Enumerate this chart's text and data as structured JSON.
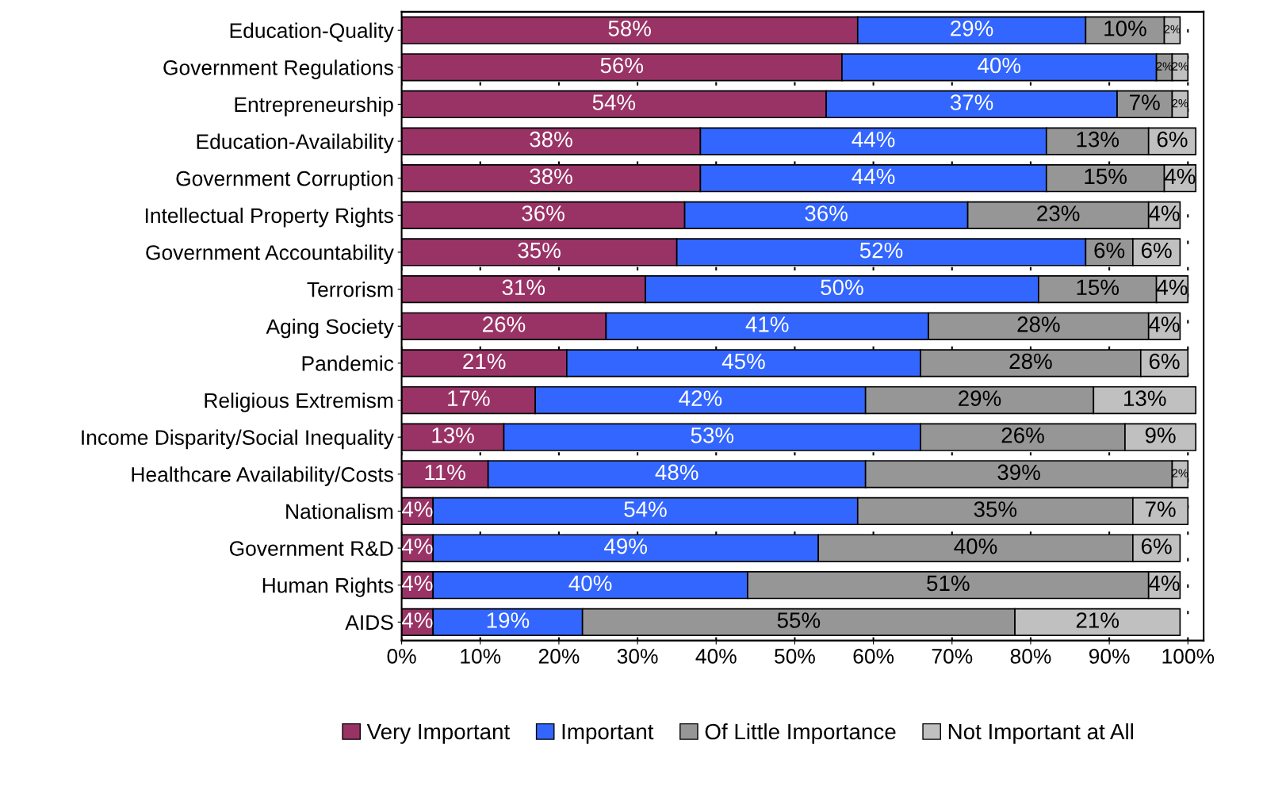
{
  "chart_data": {
    "type": "bar",
    "orientation": "horizontal",
    "stacked": true,
    "legend": "bottom",
    "grid": "x",
    "categories": [
      "Education-Quality",
      "Government Regulations",
      "Entrepreneurship",
      "Education-Availability",
      "Government Corruption",
      "Intellectual Property Rights",
      "Government Accountability",
      "Terrorism",
      "Aging Society",
      "Pandemic",
      "Religious Extremism",
      "Income Disparity/Social Inequality",
      "Healthcare Availability/Costs",
      "Nationalism",
      "Government R&D",
      "Human Rights",
      "AIDS"
    ],
    "series": [
      {
        "name": "Very Important",
        "color": "#993366",
        "values": [
          58,
          56,
          54,
          38,
          38,
          36,
          35,
          31,
          26,
          21,
          17,
          13,
          11,
          4,
          4,
          4,
          4
        ],
        "value_labels": [
          "58%",
          "56%",
          "54%",
          "38%",
          "38%",
          "36%",
          "35%",
          "31%",
          "26%",
          "21%",
          "17%",
          "13%",
          "11%",
          "4%",
          "4%",
          "4%",
          "4%"
        ]
      },
      {
        "name": "Important",
        "color": "#3366ff",
        "values": [
          29,
          40,
          37,
          44,
          44,
          36,
          52,
          50,
          41,
          45,
          42,
          53,
          48,
          54,
          49,
          40,
          19
        ],
        "value_labels": [
          "29%",
          "40%",
          "37%",
          "44%",
          "44%",
          "36%",
          "52%",
          "50%",
          "41%",
          "45%",
          "42%",
          "53%",
          "48%",
          "54%",
          "49%",
          "40%",
          "19%"
        ]
      },
      {
        "name": "Of Little Importance",
        "color": "#969696",
        "values": [
          10,
          2,
          7,
          13,
          15,
          23,
          6,
          15,
          28,
          28,
          29,
          26,
          39,
          35,
          40,
          51,
          55
        ],
        "value_labels": [
          "10%",
          "2%",
          "7%",
          "13%",
          "15%",
          "23%",
          "6%",
          "15%",
          "28%",
          "28%",
          "29%",
          "26%",
          "39%",
          "35%",
          "40%",
          "51%",
          "55%"
        ]
      },
      {
        "name": "Not Important at All",
        "color": "#c0c0c0",
        "values": [
          2,
          2,
          2,
          6,
          4,
          4,
          6,
          4,
          4,
          6,
          13,
          9,
          2,
          7,
          6,
          4,
          21
        ],
        "value_labels": [
          "2%",
          "2%",
          "2%",
          "6%",
          "4%",
          "4%",
          "6%",
          "4%",
          "4%",
          "6%",
          "13%",
          "9%",
          "2%",
          "7%",
          "6%",
          "4%",
          "21%"
        ]
      }
    ],
    "xlim": [
      0,
      102
    ],
    "xticks": [
      {
        "value": 0,
        "label": "0%"
      },
      {
        "value": 10,
        "label": "10%"
      },
      {
        "value": 20,
        "label": "20%"
      },
      {
        "value": 30,
        "label": "30%"
      },
      {
        "value": 40,
        "label": "40%"
      },
      {
        "value": 50,
        "label": "50%"
      },
      {
        "value": 60,
        "label": "60%"
      },
      {
        "value": 70,
        "label": "70%"
      },
      {
        "value": 80,
        "label": "80%"
      },
      {
        "value": 90,
        "label": "90%"
      },
      {
        "value": 100,
        "label": "100%"
      }
    ]
  }
}
